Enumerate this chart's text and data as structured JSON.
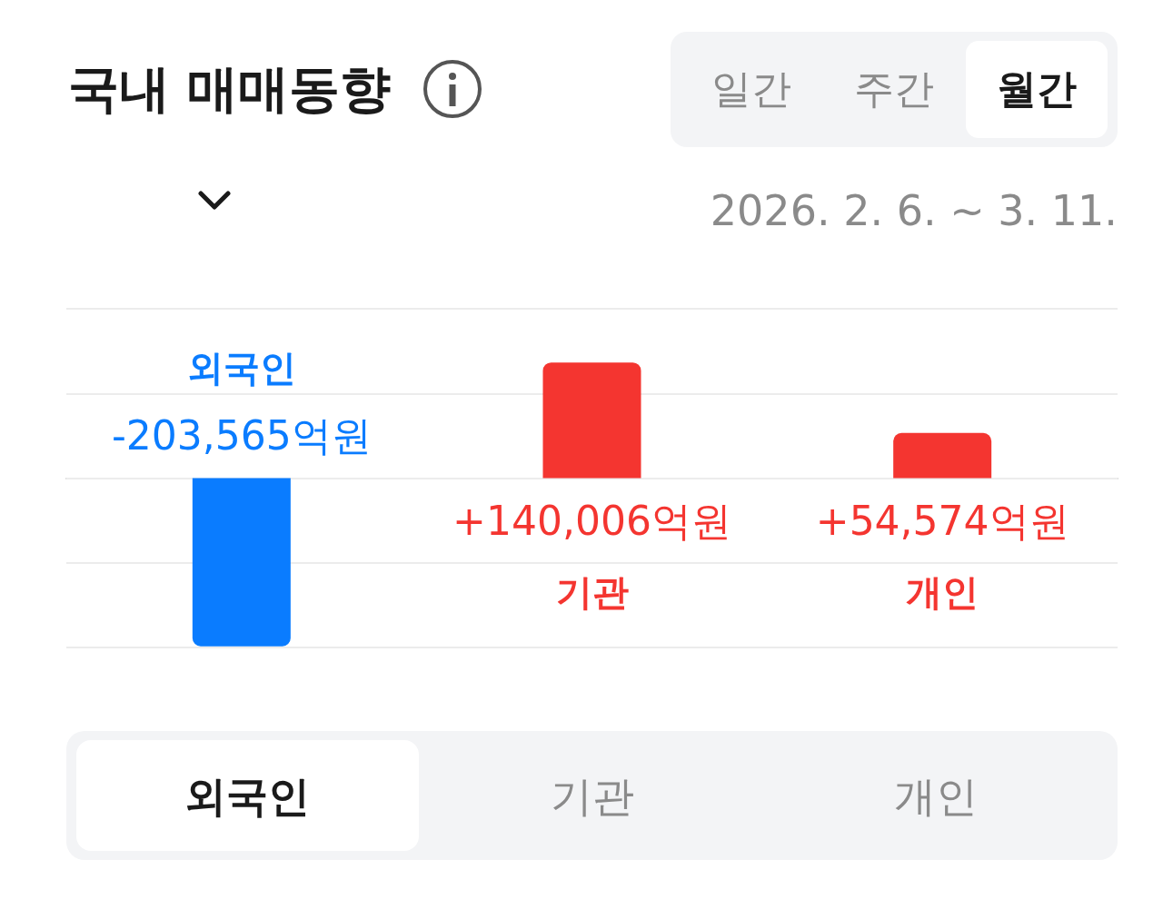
{
  "chart_data": {
    "type": "bar",
    "title": "국내 매매동향",
    "subtitle": "2026. 2. 6. ~ 3. 11.",
    "categories": [
      "외국인",
      "기관",
      "개인"
    ],
    "values": [
      -203565,
      140006,
      54574
    ],
    "colors": [
      "#0a7cff",
      "#f43530",
      "#f43530"
    ],
    "value_labels": [
      "-203,565억원",
      "+140,006억원",
      "+54,574억원"
    ],
    "grid": true,
    "ylim": [
      -205000,
      205000
    ],
    "yticks": [
      {
        "value": -205000,
        "label": null
      },
      {
        "value": -102500,
        "label": null
      },
      {
        "value": 0,
        "label": null
      },
      {
        "value": 102500,
        "label": null
      },
      {
        "value": 205000,
        "label": null
      }
    ],
    "annotations": [
      "일간",
      "주간",
      "월간",
      "외국인",
      "기관",
      "개인"
    ]
  }
}
